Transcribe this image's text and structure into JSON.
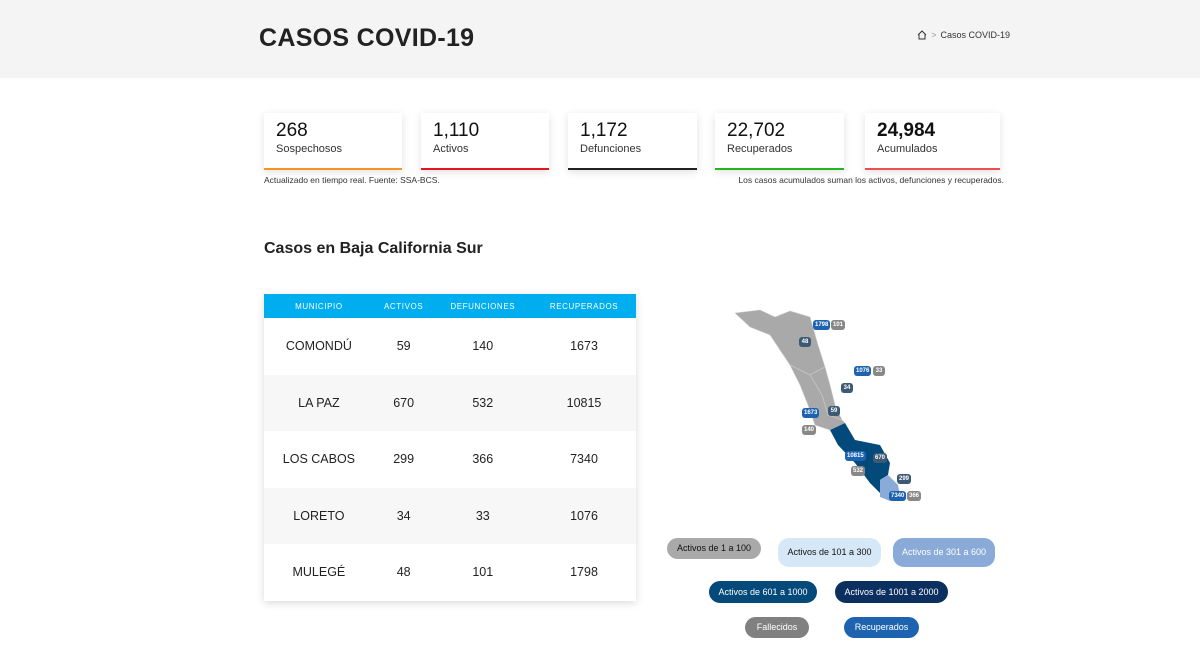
{
  "header": {
    "title": "CASOS COVID-19",
    "breadcrumb": {
      "home_icon": "home-icon",
      "separator": ">",
      "current": "Casos COVID-19"
    }
  },
  "stats": [
    {
      "value": "268",
      "label": "Sospechosos",
      "color": "#f7931e"
    },
    {
      "value": "1,110",
      "label": "Activos",
      "color": "#e8141b"
    },
    {
      "value": "1,172",
      "label": "Defunciones",
      "color": "#222222"
    },
    {
      "value": "22,702",
      "label": "Recuperados",
      "color": "#22b51e"
    },
    {
      "value": "24,984",
      "label": "Acumulados",
      "color": "#f04e4e"
    }
  ],
  "notes": {
    "left": "Actualizado en tiempo real. Fuente: SSA-BCS.",
    "right": "Los casos acumulados suman los activos, defunciones y recuperados."
  },
  "section_title": "Casos en Baja California Sur",
  "table": {
    "headers": [
      "MUNICIPIO",
      "ACTIVOS",
      "DEFUNCIONES",
      "RECUPERADOS"
    ],
    "rows": [
      [
        "COMONDÚ",
        "59",
        "140",
        "1673"
      ],
      [
        "LA PAZ",
        "670",
        "532",
        "10815"
      ],
      [
        "LOS CABOS",
        "299",
        "366",
        "7340"
      ],
      [
        "LORETO",
        "34",
        "33",
        "1076"
      ],
      [
        "MULEGÉ",
        "48",
        "101",
        "1798"
      ]
    ]
  },
  "map_badges": {
    "mulege": {
      "rec": "1798",
      "def": "101",
      "act": "48"
    },
    "loreto": {
      "rec": "1076",
      "def": "33",
      "act": "34"
    },
    "comondu": {
      "rec": "1673",
      "def": "140",
      "act": "59"
    },
    "lapaz": {
      "rec": "10815",
      "def": "532",
      "act": "670"
    },
    "loscabos": {
      "rec": "7340",
      "def": "366",
      "act": "299"
    }
  },
  "legend": [
    "Activos de 1 a 100",
    "Activos de 101 a 300",
    "Activos de 301 a 600",
    "Activos de 601 a 1000",
    "Activos de 1001 a 2000",
    "Fallecidos",
    "Recuperados"
  ],
  "colors": {
    "accent": "#00adef",
    "lvl1": "#a9a9a9",
    "lvl2": "#d6e8f7",
    "lvl3": "#8aabd8",
    "lvl4": "#034a7a",
    "lvl5": "#0b2f5e",
    "fallecidos": "#808080",
    "recuperados": "#1e63b0"
  }
}
